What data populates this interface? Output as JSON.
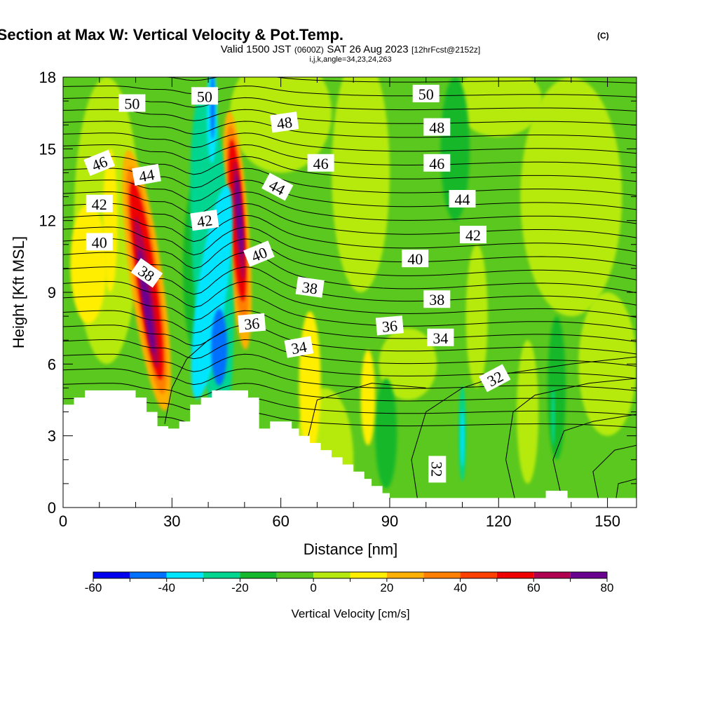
{
  "chart_data": {
    "type": "heatmap",
    "title": "Wind-Parallel Section at Max W: Vertical Velocity & Pot.Temp.",
    "title_suffix": "(C)",
    "subtitle": {
      "valid": "Valid 1500 JST",
      "utc": "(0600Z)",
      "date": "SAT 26 Aug 2023",
      "fcst": "[12hrFcst@2152z]"
    },
    "ijk_line": "i,j,k,angle=34,23,24,263",
    "xlabel": "Distance [nm]",
    "ylabel": "Height [Kft MSL]",
    "xlim": [
      0,
      158
    ],
    "ylim": [
      0,
      18
    ],
    "x_ticks": [
      "0",
      "30",
      "60",
      "90",
      "120",
      "150"
    ],
    "y_ticks": [
      "0",
      "3",
      "6",
      "9",
      "12",
      "15",
      "18"
    ],
    "colorbar": {
      "label": "Vertical Velocity [cm/s]",
      "ticks": [
        "-60",
        "-40",
        "-20",
        "0",
        "20",
        "40",
        "60",
        "80"
      ],
      "colors": [
        "#0000ee",
        "#0070ff",
        "#00e5ff",
        "#00d68f",
        "#15b82c",
        "#5ac81e",
        "#b6ea0e",
        "#ffee00",
        "#ffb000",
        "#ff8000",
        "#ff4000",
        "#ee0000",
        "#b00050",
        "#6a0090"
      ]
    },
    "theta_contour_labels": [
      {
        "text": "50",
        "x": 19,
        "y": 16.9
      },
      {
        "text": "50",
        "x": 39,
        "y": 17.2
      },
      {
        "text": "50",
        "x": 100,
        "y": 17.3
      },
      {
        "text": "48",
        "x": 61,
        "y": 16.1
      },
      {
        "text": "48",
        "x": 103,
        "y": 15.9
      },
      {
        "text": "46",
        "x": 10,
        "y": 14.4
      },
      {
        "text": "46",
        "x": 71,
        "y": 14.4
      },
      {
        "text": "46",
        "x": 103,
        "y": 14.4
      },
      {
        "text": "44",
        "x": 23,
        "y": 13.9
      },
      {
        "text": "44",
        "x": 59,
        "y": 13.4
      },
      {
        "text": "44",
        "x": 110,
        "y": 12.9
      },
      {
        "text": "42",
        "x": 10,
        "y": 12.7
      },
      {
        "text": "42",
        "x": 39,
        "y": 12.0
      },
      {
        "text": "42",
        "x": 113,
        "y": 11.4
      },
      {
        "text": "40",
        "x": 10,
        "y": 11.1
      },
      {
        "text": "40",
        "x": 54,
        "y": 10.6
      },
      {
        "text": "40",
        "x": 97,
        "y": 10.4
      },
      {
        "text": "38",
        "x": 23,
        "y": 9.8
      },
      {
        "text": "38",
        "x": 68,
        "y": 9.2
      },
      {
        "text": "38",
        "x": 103,
        "y": 8.7
      },
      {
        "text": "36",
        "x": 52,
        "y": 7.7
      },
      {
        "text": "36",
        "x": 90,
        "y": 7.6
      },
      {
        "text": "34",
        "x": 65,
        "y": 6.7
      },
      {
        "text": "34",
        "x": 104,
        "y": 7.1
      },
      {
        "text": "32",
        "x": 119,
        "y": 5.4
      },
      {
        "text": "32",
        "x": 103,
        "y": 1.6
      }
    ]
  }
}
